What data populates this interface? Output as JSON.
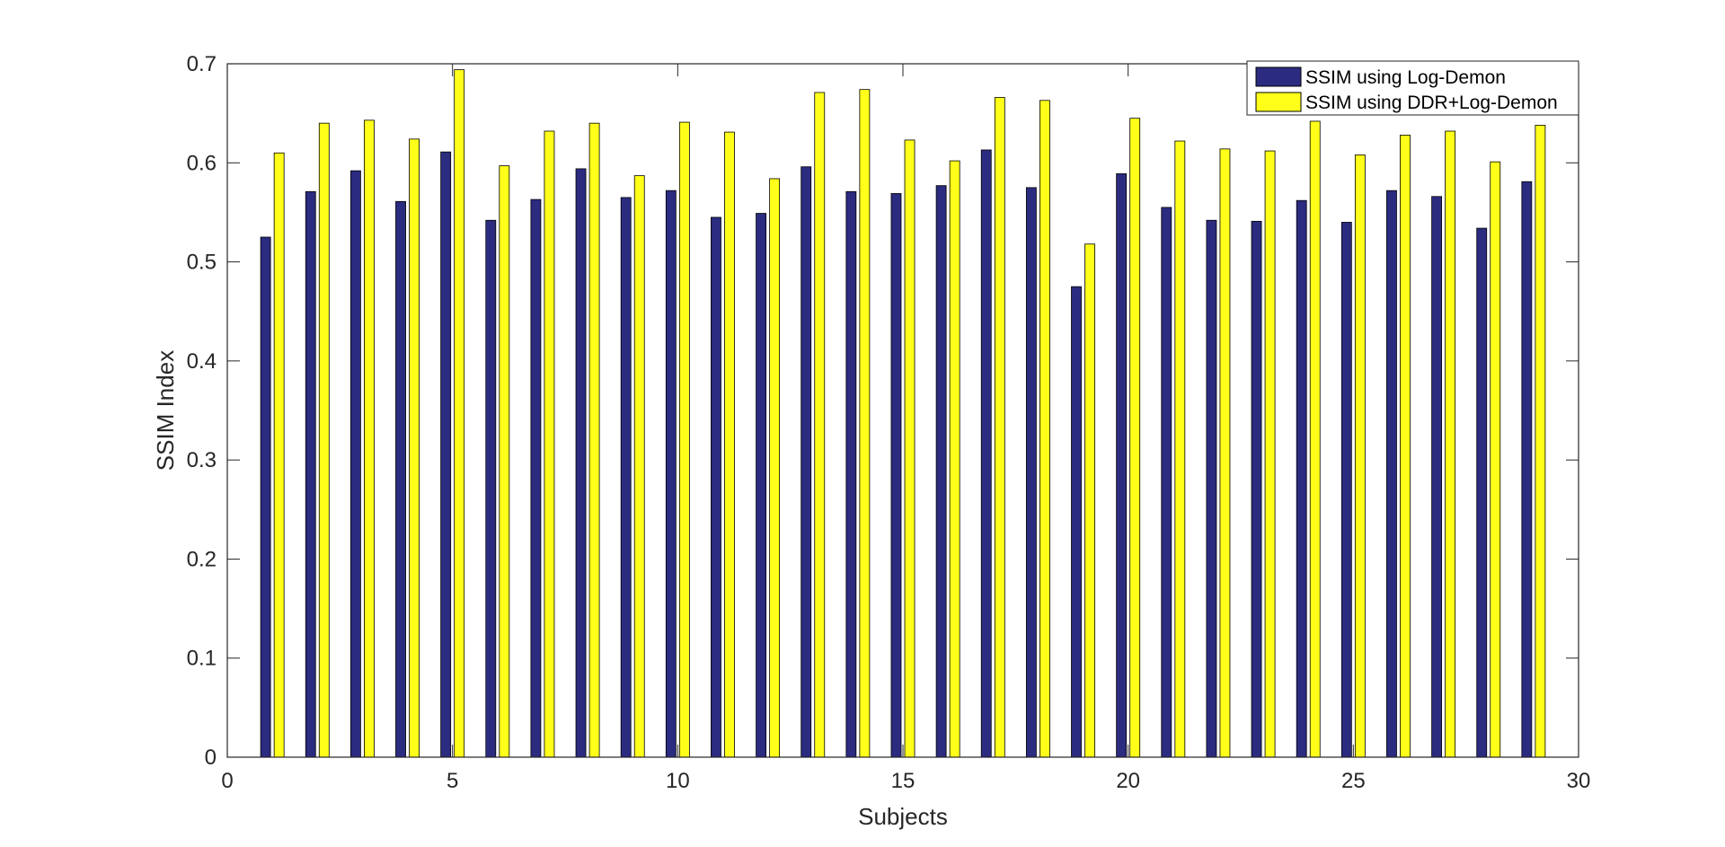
{
  "chart_data": {
    "type": "bar",
    "xlabel": "Subjects",
    "ylabel": "SSIM Index",
    "xlim": [
      0,
      30
    ],
    "ylim": [
      0,
      0.7
    ],
    "xticks": [
      "0",
      "5",
      "10",
      "15",
      "20",
      "25",
      "30"
    ],
    "yticks": [
      "0",
      "0.1",
      "0.2",
      "0.3",
      "0.4",
      "0.5",
      "0.6",
      "0.7"
    ],
    "grid": false,
    "legend_position": "top-right",
    "categories": [
      1,
      2,
      3,
      4,
      5,
      6,
      7,
      8,
      9,
      10,
      11,
      12,
      13,
      14,
      15,
      16,
      17,
      18,
      19,
      20,
      21,
      22,
      23,
      24,
      25,
      26,
      27,
      28,
      29
    ],
    "series": [
      {
        "name": "SSIM using Log-Demon",
        "color": "#2b2b7f",
        "values": [
          0.525,
          0.571,
          0.592,
          0.561,
          0.611,
          0.542,
          0.563,
          0.594,
          0.565,
          0.572,
          0.545,
          0.549,
          0.596,
          0.571,
          0.569,
          0.577,
          0.613,
          0.575,
          0.475,
          0.589,
          0.555,
          0.542,
          0.541,
          0.562,
          0.54,
          0.572,
          0.566,
          0.534,
          0.581
        ]
      },
      {
        "name": "SSIM using DDR+Log-Demon",
        "color": "#ffff1a",
        "values": [
          0.61,
          0.64,
          0.643,
          0.624,
          0.694,
          0.597,
          0.632,
          0.64,
          0.587,
          0.641,
          0.631,
          0.584,
          0.671,
          0.674,
          0.623,
          0.602,
          0.666,
          0.663,
          0.518,
          0.645,
          0.622,
          0.614,
          0.612,
          0.642,
          0.608,
          0.628,
          0.632,
          0.601,
          0.638
        ]
      }
    ]
  }
}
